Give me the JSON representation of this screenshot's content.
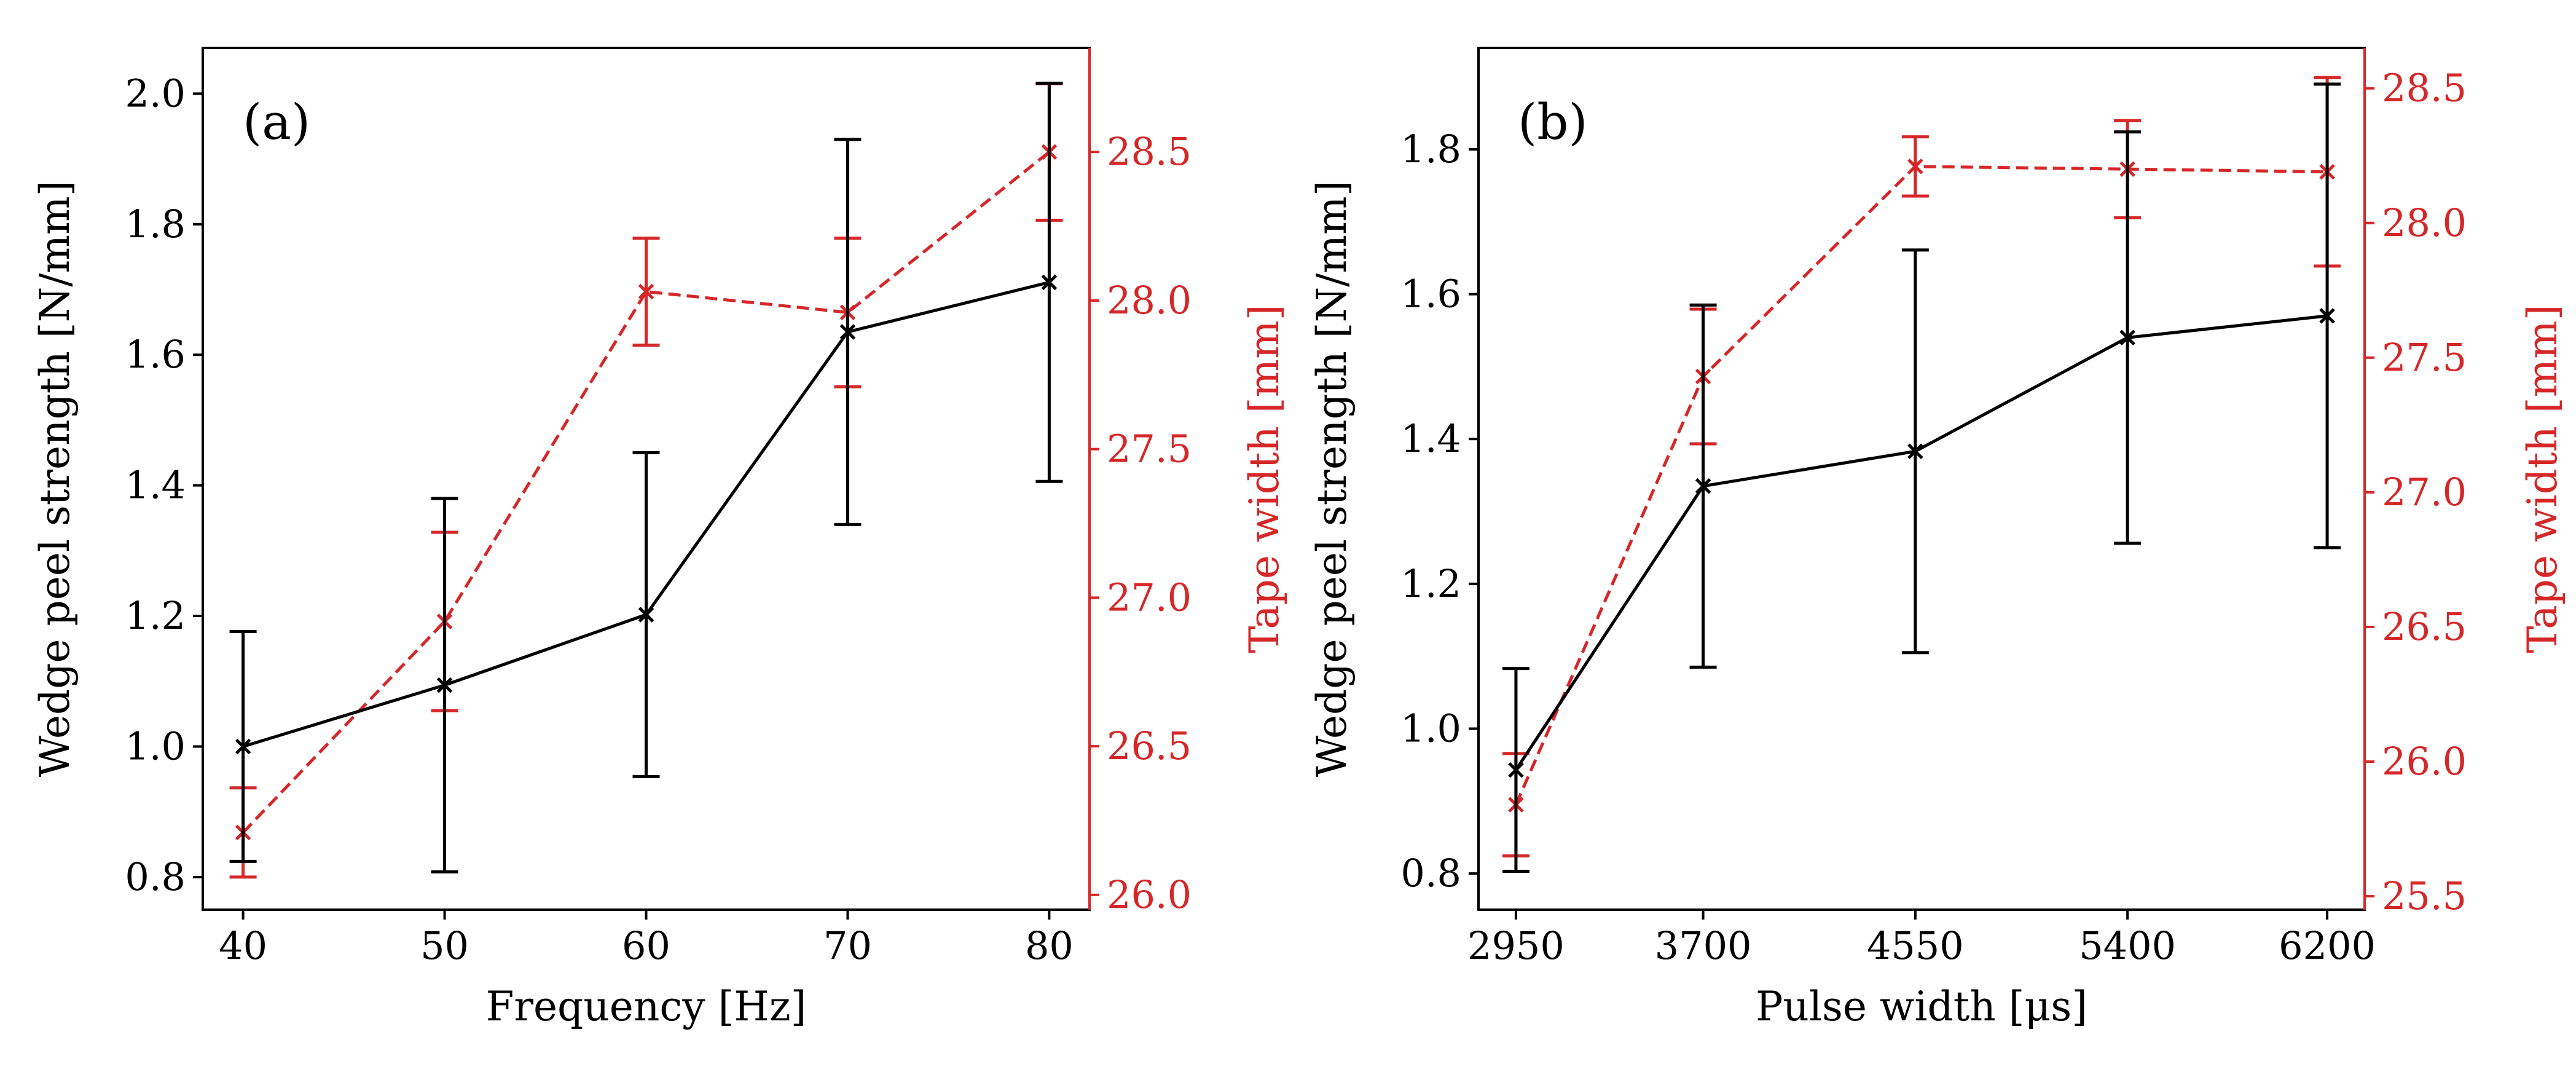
{
  "chart_data": [
    {
      "type": "line",
      "panel_label": "(a)",
      "xlabel": "Frequency [Hz]",
      "ylabel_left": "Wedge peel strength [N/mm]",
      "ylabel_right": "Tape width [mm]",
      "categories": [
        40,
        50,
        60,
        70,
        80
      ],
      "tick_labels": [
        "40",
        "50",
        "60",
        "70",
        "80"
      ],
      "xlim": [
        38,
        82
      ],
      "ylim_left": [
        0.75,
        2.07
      ],
      "ylim_right": [
        25.95,
        28.85
      ],
      "yticks_left": [
        0.8,
        1.0,
        1.2,
        1.4,
        1.6,
        1.8,
        2.0
      ],
      "yticks_left_labels": [
        "0.8",
        "1.0",
        "1.2",
        "1.4",
        "1.6",
        "1.8",
        "2.0"
      ],
      "yticks_right": [
        26.0,
        26.5,
        27.0,
        27.5,
        28.0,
        28.5
      ],
      "yticks_right_labels": [
        "26.0",
        "26.5",
        "27.0",
        "27.5",
        "28.0",
        "28.5"
      ],
      "series": [
        {
          "name": "Wedge peel strength",
          "axis": "left",
          "color": "#000000",
          "style": "solid",
          "values": [
            1.0,
            1.094,
            1.202,
            1.635,
            1.711
          ],
          "errors": [
            0.176,
            0.286,
            0.248,
            0.295,
            0.305
          ]
        },
        {
          "name": "Tape width",
          "axis": "right",
          "color": "#d62728",
          "style": "dashed",
          "values": [
            26.21,
            26.92,
            28.03,
            27.96,
            28.5
          ],
          "errors": [
            0.15,
            0.3,
            0.18,
            0.25,
            0.23
          ]
        }
      ]
    },
    {
      "type": "line",
      "panel_label": "(b)",
      "xlabel": "Pulse width [μs]",
      "ylabel_left": "Wedge peel strength [N/mm]",
      "ylabel_right": "Tape width [mm]",
      "categories": [
        2950,
        3700,
        4550,
        5400,
        6200
      ],
      "tick_labels": [
        "2950",
        "3700",
        "4550",
        "5400",
        "6200"
      ],
      "xlim": [
        2800,
        6350
      ],
      "ylim_left": [
        0.75,
        1.94
      ],
      "ylim_right": [
        25.45,
        28.65
      ],
      "yticks_left": [
        0.8,
        1.0,
        1.2,
        1.4,
        1.6,
        1.8
      ],
      "yticks_left_labels": [
        "0.8",
        "1.0",
        "1.2",
        "1.4",
        "1.6",
        "1.8"
      ],
      "yticks_right": [
        25.5,
        26.0,
        26.5,
        27.0,
        27.5,
        28.0,
        28.5
      ],
      "yticks_right_labels": [
        "25.5",
        "26.0",
        "26.5",
        "27.0",
        "27.5",
        "28.0",
        "28.5"
      ],
      "series": [
        {
          "name": "Wedge peel strength",
          "axis": "left",
          "color": "#000000",
          "style": "solid",
          "values": [
            0.943,
            1.335,
            1.383,
            1.54,
            1.57
          ],
          "errors": [
            0.14,
            0.25,
            0.278,
            0.284,
            0.32
          ]
        },
        {
          "name": "Tape width",
          "axis": "right",
          "color": "#d62728",
          "style": "dashed",
          "values": [
            25.84,
            27.43,
            28.21,
            28.2,
            28.19
          ],
          "errors": [
            0.19,
            0.25,
            0.11,
            0.18,
            0.35
          ]
        }
      ]
    }
  ]
}
